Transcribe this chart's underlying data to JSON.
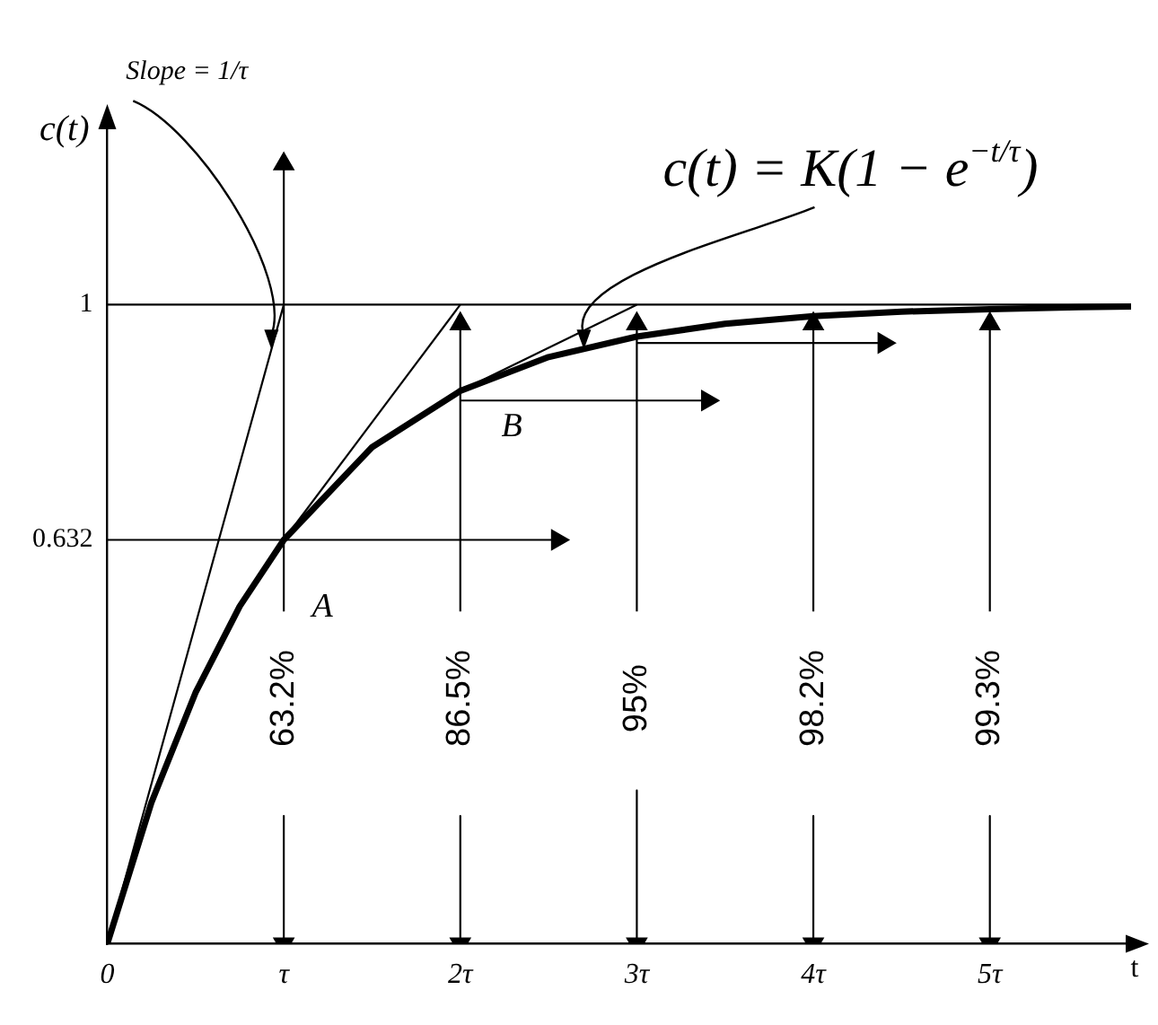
{
  "chart_data": {
    "type": "line",
    "xlabel": "t",
    "ylabel": "c(t)",
    "xlim": [
      0,
      5.8
    ],
    "ylim": [
      0,
      1.28
    ],
    "xticks": [
      0,
      {
        "value": 1,
        "label": "τ"
      },
      {
        "value": 2,
        "label": "2τ"
      },
      {
        "value": 3,
        "label": "3τ"
      },
      {
        "value": 4,
        "label": "4τ"
      },
      {
        "value": 5,
        "label": "5τ"
      }
    ],
    "yticks": [
      0.632,
      1
    ],
    "grid": false,
    "legend": false,
    "ref_lines": [
      {
        "axis": "y",
        "value": 1,
        "color": "#000000"
      }
    ],
    "annotations": [
      {
        "text": "Slope = 1/τ",
        "x": 0.93,
        "y": 0.93
      },
      {
        "text": "c(t) = K(1 − e$^{−t/τ}$)",
        "x": 2.7,
        "y": 0.93
      },
      "A",
      "B",
      "63.2%",
      "86.5%",
      "95%",
      "98.2%",
      "99.3%"
    ],
    "series": [
      {
        "marker": "none",
        "color": "#000000",
        "x": [
          0,
          0.25,
          0.5,
          0.75,
          1,
          1.5,
          2,
          2.5,
          3,
          3.5,
          4,
          4.5,
          5,
          5.5,
          5.8
        ],
        "values": [
          0,
          0.221,
          0.393,
          0.528,
          0.632,
          0.777,
          0.865,
          0.918,
          0.95,
          0.97,
          0.982,
          0.989,
          0.993,
          0.996,
          0.997
        ]
      },
      {
        "marker": "none",
        "color": "#000000",
        "x": [
          0,
          1
        ],
        "values": [
          0,
          1
        ]
      },
      {
        "marker": "none",
        "color": "#000000",
        "x": [
          1,
          2
        ],
        "values": [
          0.632,
          1
        ]
      },
      {
        "marker": "none",
        "color": "#000000",
        "x": [
          2,
          3
        ],
        "values": [
          0.865,
          1
        ]
      },
      {
        "marker": "triangle",
        "color": "#000000",
        "x": [
          0,
          2.55
        ],
        "values": [
          0.632,
          0.632
        ]
      },
      {
        "marker": "triangle",
        "color": "#000000",
        "x": [
          2,
          3.4
        ],
        "values": [
          0.85,
          0.85
        ]
      },
      {
        "marker": "triangle",
        "color": "#000000",
        "x": [
          3,
          4.4
        ],
        "values": [
          0.94,
          0.94
        ]
      },
      {
        "marker": "triangle",
        "color": "#000000",
        "x": [
          1,
          1
        ],
        "values": [
          0.2,
          0
        ]
      },
      {
        "marker": "triangle",
        "color": "#000000",
        "x": [
          1,
          1
        ],
        "values": [
          0.52,
          1.22
        ]
      },
      {
        "marker": "triangle",
        "color": "#000000",
        "x": [
          2,
          2
        ],
        "values": [
          0.2,
          0
        ]
      },
      {
        "marker": "triangle",
        "color": "#000000",
        "x": [
          2,
          2
        ],
        "values": [
          0.52,
          0.97
        ]
      },
      {
        "marker": "triangle",
        "color": "#000000",
        "x": [
          3,
          3
        ],
        "values": [
          0.24,
          0
        ]
      },
      {
        "marker": "triangle",
        "color": "#000000",
        "x": [
          3,
          3
        ],
        "values": [
          0.52,
          0.97
        ]
      },
      {
        "marker": "triangle",
        "color": "#000000",
        "x": [
          4,
          4
        ],
        "values": [
          0.2,
          0
        ]
      },
      {
        "marker": "triangle",
        "color": "#000000",
        "x": [
          4,
          4
        ],
        "values": [
          0.52,
          0.97
        ]
      },
      {
        "marker": "triangle",
        "color": "#000000",
        "x": [
          5,
          5
        ],
        "values": [
          0.2,
          0
        ]
      },
      {
        "marker": "triangle",
        "color": "#000000",
        "x": [
          5,
          5
        ],
        "values": [
          0.52,
          0.97
        ]
      }
    ]
  }
}
